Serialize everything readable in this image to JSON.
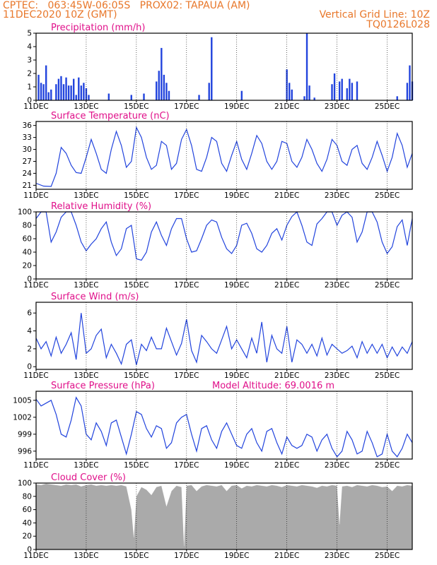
{
  "header": {
    "line1": "CPTEC:   063:45W-06:05S   PROX02: TAPAUA (AM)",
    "line2_left": "11DEC2020 10Z (GMT)",
    "line2_right": "Vertical Grid Line: 10Z",
    "line3_right": "TQ0126L028"
  },
  "colors": {
    "header": "#e8772a",
    "title": "#e0108a",
    "series": "#2244dd",
    "cloud": "#aaaaaa"
  },
  "x_axis": {
    "labels": [
      "11DEC",
      "13DEC",
      "15DEC",
      "17DEC",
      "19DEC",
      "21DEC",
      "23DEC",
      "25DEC"
    ],
    "label_days": [
      11,
      13,
      15,
      17,
      19,
      21,
      23,
      25
    ],
    "domain": [
      11.0,
      26.0
    ]
  },
  "chart_data": [
    {
      "type": "bar",
      "title": "Precipitation (mm/h)",
      "ylim": [
        0,
        5
      ],
      "yticks": [
        0,
        1,
        2,
        3,
        4,
        5
      ],
      "x": [
        11.1,
        11.2,
        11.3,
        11.4,
        11.5,
        11.6,
        11.8,
        11.9,
        12.0,
        12.1,
        12.2,
        12.3,
        12.4,
        12.5,
        12.6,
        12.7,
        12.8,
        12.9,
        13.0,
        13.1,
        13.9,
        14.8,
        15.3,
        15.8,
        15.9,
        16.0,
        16.1,
        16.2,
        16.3,
        17.5,
        17.9,
        18.0,
        19.2,
        21.0,
        21.1,
        21.2,
        21.7,
        21.8,
        21.9,
        22.1,
        22.8,
        22.9,
        23.1,
        23.2,
        23.4,
        23.5,
        23.6,
        23.8,
        25.4,
        25.8,
        25.9,
        26.0
      ],
      "values": [
        1.9,
        1.3,
        1.2,
        2.6,
        0.6,
        0.8,
        1.2,
        1.6,
        1.8,
        1.2,
        1.7,
        1.1,
        1.1,
        1.6,
        0.4,
        1.7,
        1.1,
        1.3,
        0.9,
        0.4,
        0.5,
        0.4,
        0.5,
        1.4,
        2.2,
        3.9,
        1.9,
        1.3,
        0.7,
        0.4,
        1.3,
        4.7,
        0.7,
        2.3,
        1.3,
        0.8,
        0.3,
        5.0,
        1.1,
        0.2,
        1.2,
        2.0,
        1.4,
        1.6,
        0.9,
        1.6,
        1.3,
        1.4,
        0.3,
        1.3,
        2.6,
        1.4
      ],
      "color": "#2244dd"
    },
    {
      "type": "line",
      "title": "Surface Temperature (nC)",
      "ylim": [
        20,
        37
      ],
      "yticks": [
        21,
        24,
        27,
        30,
        33,
        36
      ],
      "x": [
        11.0,
        11.3,
        11.6,
        11.8,
        12.0,
        12.2,
        12.4,
        12.6,
        12.8,
        13.0,
        13.2,
        13.4,
        13.6,
        13.8,
        14.0,
        14.2,
        14.4,
        14.6,
        14.8,
        15.0,
        15.2,
        15.4,
        15.6,
        15.8,
        16.0,
        16.2,
        16.4,
        16.6,
        16.8,
        17.0,
        17.2,
        17.4,
        17.6,
        17.8,
        18.0,
        18.2,
        18.4,
        18.6,
        18.8,
        19.0,
        19.2,
        19.4,
        19.6,
        19.8,
        20.0,
        20.2,
        20.4,
        20.6,
        20.8,
        21.0,
        21.2,
        21.4,
        21.6,
        21.8,
        22.0,
        22.2,
        22.4,
        22.6,
        22.8,
        23.0,
        23.2,
        23.4,
        23.6,
        23.8,
        24.0,
        24.2,
        24.4,
        24.6,
        24.8,
        25.0,
        25.2,
        25.4,
        25.6,
        25.8,
        26.0
      ],
      "values": [
        21.5,
        20.8,
        20.7,
        24.0,
        30.5,
        29.0,
        26.0,
        24.2,
        24.0,
        28.0,
        32.5,
        29.0,
        25.0,
        24.0,
        30.0,
        34.5,
        31.0,
        25.5,
        27.0,
        35.5,
        33.0,
        28.0,
        25.0,
        26.0,
        32.0,
        31.0,
        25.0,
        26.5,
        32.5,
        35.0,
        31.0,
        25.0,
        24.5,
        28.0,
        33.0,
        32.0,
        26.5,
        24.5,
        28.5,
        32.0,
        27.5,
        25.0,
        29.0,
        33.5,
        31.5,
        27.0,
        25.0,
        27.0,
        32.0,
        31.5,
        27.0,
        25.5,
        28.0,
        32.5,
        30.0,
        26.5,
        24.5,
        27.5,
        32.5,
        31.0,
        27.0,
        26.0,
        30.0,
        31.0,
        26.5,
        25.0,
        28.0,
        32.0,
        28.5,
        24.5,
        28.0,
        34.0,
        31.0,
        25.5,
        29.0
      ],
      "color": "#2244dd"
    },
    {
      "type": "line",
      "title": "Relative Humidity (%)",
      "ylim": [
        0,
        100
      ],
      "yticks": [
        0,
        20,
        40,
        60,
        80,
        100
      ],
      "x": [
        11.0,
        11.2,
        11.4,
        11.6,
        11.8,
        12.0,
        12.2,
        12.4,
        12.6,
        12.8,
        13.0,
        13.2,
        13.4,
        13.6,
        13.8,
        14.0,
        14.2,
        14.4,
        14.6,
        14.8,
        15.0,
        15.2,
        15.4,
        15.6,
        15.8,
        16.0,
        16.2,
        16.4,
        16.6,
        16.8,
        17.0,
        17.2,
        17.4,
        17.6,
        17.8,
        18.0,
        18.2,
        18.4,
        18.6,
        18.8,
        19.0,
        19.2,
        19.4,
        19.6,
        19.8,
        20.0,
        20.2,
        20.4,
        20.6,
        20.8,
        21.0,
        21.2,
        21.4,
        21.6,
        21.8,
        22.0,
        22.2,
        22.4,
        22.6,
        22.8,
        23.0,
        23.2,
        23.4,
        23.6,
        23.8,
        24.0,
        24.2,
        24.4,
        24.6,
        24.8,
        25.0,
        25.2,
        25.4,
        25.6,
        25.8,
        26.0
      ],
      "values": [
        90,
        100,
        100,
        55,
        70,
        92,
        100,
        100,
        80,
        55,
        42,
        52,
        60,
        75,
        85,
        55,
        35,
        45,
        75,
        80,
        30,
        28,
        40,
        70,
        85,
        65,
        50,
        75,
        90,
        90,
        60,
        40,
        42,
        60,
        80,
        88,
        85,
        62,
        45,
        38,
        50,
        80,
        83,
        68,
        45,
        40,
        50,
        68,
        75,
        58,
        80,
        93,
        100,
        80,
        55,
        50,
        82,
        90,
        100,
        100,
        80,
        95,
        100,
        92,
        55,
        70,
        100,
        100,
        85,
        55,
        38,
        48,
        78,
        88,
        50,
        90
      ],
      "color": "#2244dd"
    },
    {
      "type": "line",
      "title": "Surface Wind (m/s)",
      "ylim": [
        -0.3,
        7.2
      ],
      "yticks": [
        0,
        2,
        4,
        6
      ],
      "x": [
        11.0,
        11.2,
        11.4,
        11.6,
        11.8,
        12.0,
        12.2,
        12.4,
        12.6,
        12.8,
        13.0,
        13.2,
        13.4,
        13.6,
        13.8,
        14.0,
        14.2,
        14.4,
        14.6,
        14.8,
        15.0,
        15.2,
        15.4,
        15.6,
        15.8,
        16.0,
        16.2,
        16.4,
        16.6,
        16.8,
        17.0,
        17.2,
        17.4,
        17.6,
        17.8,
        18.0,
        18.2,
        18.4,
        18.6,
        18.8,
        19.0,
        19.2,
        19.4,
        19.6,
        19.8,
        20.0,
        20.2,
        20.4,
        20.6,
        20.8,
        21.0,
        21.2,
        21.4,
        21.6,
        21.8,
        22.0,
        22.2,
        22.4,
        22.6,
        22.8,
        23.0,
        23.2,
        23.4,
        23.6,
        23.8,
        24.0,
        24.2,
        24.4,
        24.6,
        24.8,
        25.0,
        25.2,
        25.4,
        25.6,
        25.8,
        26.0
      ],
      "values": [
        3.2,
        2.0,
        2.8,
        1.2,
        3.3,
        1.5,
        2.5,
        3.8,
        0.8,
        6.0,
        1.5,
        2.0,
        3.5,
        4.2,
        1.0,
        2.5,
        1.5,
        0.3,
        2.5,
        3.0,
        0.2,
        2.5,
        1.8,
        3.3,
        2.0,
        2.0,
        4.3,
        2.8,
        1.3,
        2.6,
        5.3,
        1.8,
        0.5,
        3.5,
        2.8,
        2.0,
        1.5,
        3.0,
        4.5,
        2.0,
        3.0,
        2.0,
        1.0,
        3.2,
        1.5,
        5.0,
        0.5,
        3.5,
        2.0,
        1.5,
        4.5,
        0.5,
        3.0,
        2.5,
        1.5,
        2.5,
        1.2,
        3.2,
        1.3,
        2.5,
        2.0,
        1.5,
        1.8,
        2.3,
        1.0,
        2.8,
        1.5,
        2.5,
        1.5,
        2.5,
        1.0,
        2.2,
        1.2,
        2.2,
        1.5,
        2.8
      ],
      "color": "#2244dd"
    },
    {
      "type": "line",
      "title": "Surface Pressure (hPa)",
      "annotation": "Model Altitude: 69.0016 m",
      "ylim": [
        994.6,
        1006.6
      ],
      "yticks": [
        996,
        999,
        1002,
        1005
      ],
      "x": [
        11.0,
        11.2,
        11.4,
        11.6,
        11.8,
        12.0,
        12.2,
        12.4,
        12.6,
        12.8,
        13.0,
        13.2,
        13.4,
        13.6,
        13.8,
        14.0,
        14.2,
        14.4,
        14.6,
        14.8,
        15.0,
        15.2,
        15.4,
        15.6,
        15.8,
        16.0,
        16.2,
        16.4,
        16.6,
        16.8,
        17.0,
        17.2,
        17.4,
        17.6,
        17.8,
        18.0,
        18.2,
        18.4,
        18.6,
        18.8,
        19.0,
        19.2,
        19.4,
        19.6,
        19.8,
        20.0,
        20.2,
        20.4,
        20.6,
        20.8,
        21.0,
        21.2,
        21.4,
        21.6,
        21.8,
        22.0,
        22.2,
        22.4,
        22.6,
        22.8,
        23.0,
        23.2,
        23.4,
        23.6,
        23.8,
        24.0,
        24.2,
        24.4,
        24.6,
        24.8,
        25.0,
        25.2,
        25.4,
        25.6,
        25.8,
        26.0
      ],
      "values": [
        1005.2,
        1004.0,
        1004.5,
        1005.0,
        1002.5,
        999.0,
        998.5,
        1001.5,
        1005.5,
        1004.0,
        999.0,
        998.0,
        1001.0,
        999.5,
        997.0,
        1001.0,
        1001.5,
        998.5,
        995.5,
        999.0,
        1003.0,
        1002.5,
        1000.0,
        998.5,
        1000.5,
        1000.0,
        996.5,
        997.5,
        1001.0,
        1002.0,
        1002.5,
        999.0,
        996.0,
        1000.0,
        1000.5,
        998.0,
        996.5,
        999.5,
        1001.0,
        999.0,
        997.0,
        996.5,
        999.0,
        1000.0,
        997.5,
        996.0,
        999.5,
        1000.0,
        997.5,
        995.5,
        998.5,
        997.0,
        996.5,
        997.0,
        999.0,
        998.5,
        996.0,
        998.0,
        999.0,
        996.5,
        995.0,
        996.0,
        999.5,
        998.0,
        995.5,
        996.0,
        999.5,
        997.5,
        995.0,
        995.5,
        999.0,
        996.0,
        995.0,
        996.5,
        999.0,
        997.5
      ],
      "color": "#2244dd"
    },
    {
      "type": "area",
      "title": "Cloud Cover (%)",
      "ylim": [
        0,
        100
      ],
      "yticks": [
        0,
        20,
        40,
        60,
        80,
        100
      ],
      "x": [
        11.0,
        11.2,
        11.4,
        11.6,
        11.8,
        12.0,
        12.2,
        12.4,
        12.6,
        12.8,
        13.0,
        13.2,
        13.4,
        13.6,
        13.8,
        14.0,
        14.2,
        14.4,
        14.6,
        14.8,
        14.9,
        15.0,
        15.2,
        15.4,
        15.6,
        15.8,
        16.0,
        16.2,
        16.4,
        16.6,
        16.8,
        16.9,
        17.0,
        17.2,
        17.4,
        17.6,
        17.8,
        18.0,
        18.2,
        18.4,
        18.6,
        18.8,
        19.0,
        19.2,
        19.4,
        19.6,
        19.8,
        20.0,
        20.2,
        20.4,
        20.6,
        20.8,
        21.0,
        21.2,
        21.4,
        21.6,
        21.8,
        22.0,
        22.2,
        22.4,
        22.6,
        22.8,
        23.0,
        23.1,
        23.2,
        23.4,
        23.6,
        23.8,
        24.0,
        24.2,
        24.4,
        24.6,
        24.8,
        25.0,
        25.2,
        25.4,
        25.6,
        25.8,
        26.0
      ],
      "values": [
        98,
        97,
        99,
        98,
        97,
        96,
        98,
        97,
        98,
        95,
        97,
        98,
        96,
        97,
        96,
        97,
        96,
        97,
        95,
        60,
        18,
        80,
        94,
        90,
        82,
        94,
        96,
        65,
        88,
        96,
        94,
        5,
        96,
        97,
        88,
        95,
        97,
        96,
        95,
        97,
        88,
        96,
        97,
        92,
        96,
        95,
        97,
        96,
        95,
        97,
        96,
        94,
        97,
        96,
        95,
        97,
        96,
        95,
        93,
        96,
        95,
        97,
        96,
        38,
        95,
        96,
        94,
        97,
        96,
        95,
        97,
        96,
        94,
        95,
        88,
        96,
        95,
        97,
        96
      ],
      "color": "#aaaaaa"
    }
  ]
}
